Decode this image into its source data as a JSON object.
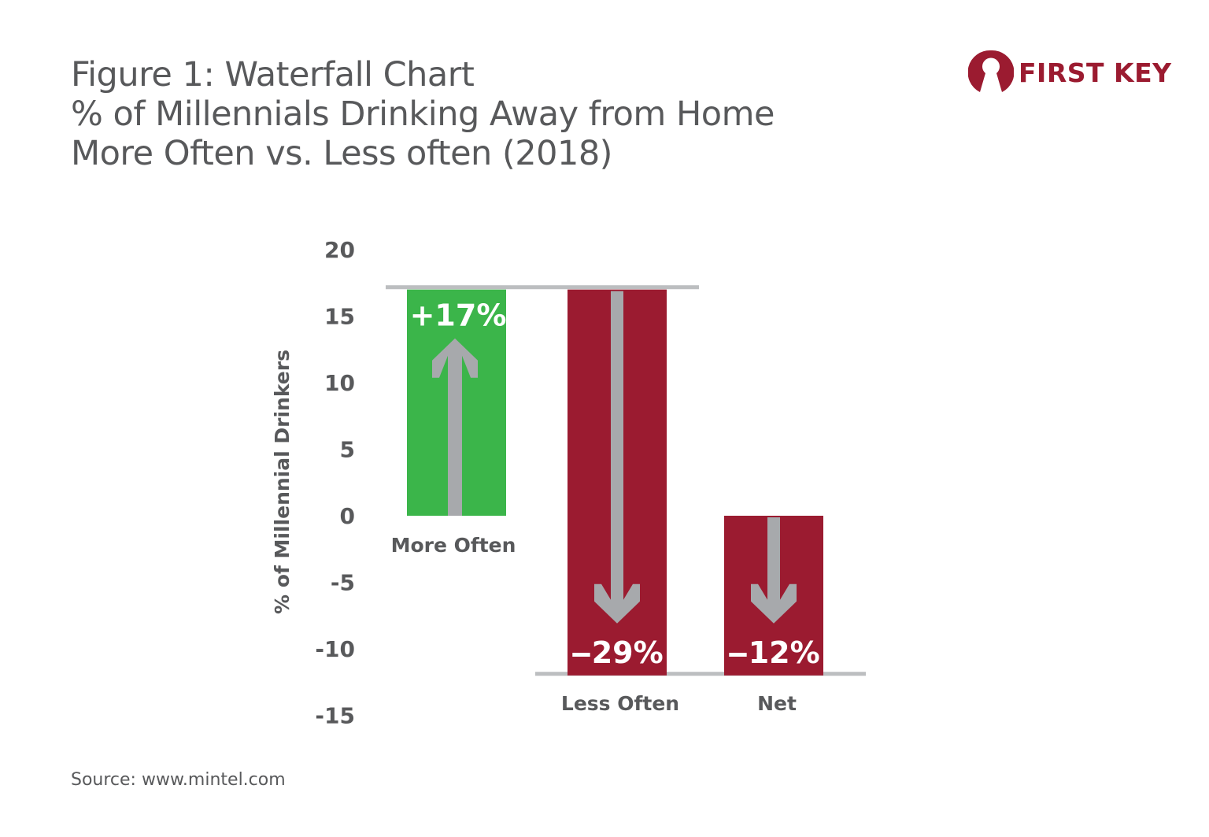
{
  "title_lines": [
    "Figure 1: Waterfall Chart",
    "% of Millennials Drinking Away from Home",
    "More Often vs. Less often (2018)"
  ],
  "source": "Source: www.mintel.com",
  "logo": {
    "text": "FIRST KEY",
    "color": "#9b1b30"
  },
  "chart_data": {
    "type": "bar",
    "subtype": "waterfall",
    "title": "Figure 1: Waterfall Chart",
    "ylabel": "% of Millennial Drinkers",
    "xlabel": "",
    "ylim": [
      -15,
      20
    ],
    "yticks": [
      20,
      15,
      10,
      5,
      0,
      -5,
      -10,
      -15
    ],
    "grid": false,
    "categories": [
      "More Often",
      "Less Often",
      "Net"
    ],
    "bars": [
      {
        "category": "More Often",
        "start": 0,
        "end": 17,
        "label": "+17%",
        "color": "#3bb54a",
        "direction": "up"
      },
      {
        "category": "Less Often",
        "start": 17,
        "end": -12,
        "label": "‒29%",
        "color": "#9b1b30",
        "direction": "down"
      },
      {
        "category": "Net",
        "start": 0,
        "end": -12,
        "label": "‒12%",
        "color": "#9b1b30",
        "direction": "down"
      }
    ],
    "arrow_color": "#a7a9ac",
    "connector_color": "#bcbec0"
  }
}
